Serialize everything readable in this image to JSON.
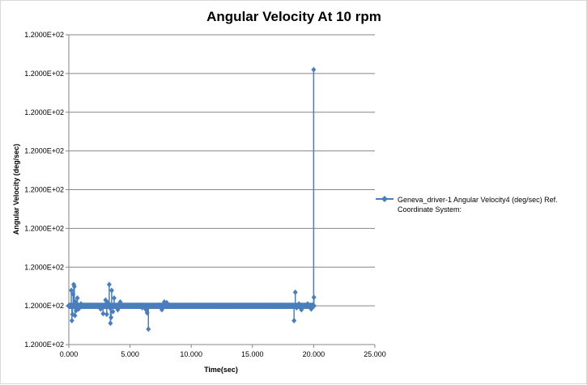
{
  "chart_data": {
    "type": "scatter",
    "title": "Angular Velocity At 10 rpm",
    "xlabel": "Time(sec)",
    "ylabel": "Angular Velocity (deg/sec)",
    "xlim": [
      0,
      25
    ],
    "x_ticks": [
      0,
      5,
      10,
      15,
      20,
      25
    ],
    "x_tick_labels": [
      "0.000",
      "5.000",
      "10.000",
      "15.000",
      "20.000",
      "25.000"
    ],
    "ylim": [
      0,
      8
    ],
    "y_ticks": [
      0,
      1,
      2,
      3,
      4,
      5,
      6,
      7,
      8
    ],
    "y_tick_labels": [
      "1.2000E+02",
      "1.2000E+02",
      "1.2000E+02",
      "1.2000E+02",
      "1.2000E+02",
      "1.2000E+02",
      "1.2000E+02",
      "1.2000E+02",
      "1.2000E+02"
    ],
    "y_scale_note": "tick labels all print 1.2000E+02; values given in tick-interval units",
    "grid": true,
    "legend_position": "right",
    "series": [
      {
        "name": "Geneva_driver-1 Angular Velocity4 (deg/sec) Ref. Coordinate System:",
        "color": "#4a7ebb",
        "marker": "diamond",
        "band": {
          "x_start": 0.0,
          "x_end": 20.0,
          "y": 1.0,
          "half_width": 0.08
        },
        "points": [
          [
            0.1,
            1.0
          ],
          [
            0.2,
            1.4
          ],
          [
            0.25,
            0.62
          ],
          [
            0.3,
            0.78
          ],
          [
            0.35,
            1.3
          ],
          [
            0.4,
            1.55
          ],
          [
            0.45,
            1.5
          ],
          [
            0.5,
            0.75
          ],
          [
            0.55,
            1.1
          ],
          [
            0.6,
            0.88
          ],
          [
            0.7,
            1.2
          ],
          [
            0.8,
            0.92
          ],
          [
            1.0,
            1.05
          ],
          [
            2.6,
            0.92
          ],
          [
            2.8,
            0.8
          ],
          [
            3.0,
            1.15
          ],
          [
            3.1,
            0.78
          ],
          [
            3.2,
            1.08
          ],
          [
            3.3,
            1.55
          ],
          [
            3.35,
            0.95
          ],
          [
            3.4,
            0.55
          ],
          [
            3.45,
            0.7
          ],
          [
            3.5,
            1.4
          ],
          [
            3.6,
            0.85
          ],
          [
            3.7,
            1.2
          ],
          [
            4.0,
            0.9
          ],
          [
            4.2,
            1.1
          ],
          [
            6.0,
            0.95
          ],
          [
            6.3,
            0.9
          ],
          [
            6.4,
            0.82
          ],
          [
            6.5,
            0.4
          ],
          [
            7.4,
            1.02
          ],
          [
            7.6,
            0.9
          ],
          [
            7.8,
            1.1
          ],
          [
            8.0,
            1.08
          ],
          [
            18.4,
            0.62
          ],
          [
            18.5,
            1.35
          ],
          [
            18.6,
            0.95
          ],
          [
            18.8,
            1.05
          ],
          [
            19.0,
            0.9
          ],
          [
            19.5,
            1.05
          ],
          [
            19.8,
            0.92
          ],
          [
            19.95,
            1.02
          ],
          [
            20.0,
            7.1
          ],
          [
            20.02,
            1.22
          ]
        ]
      }
    ]
  }
}
